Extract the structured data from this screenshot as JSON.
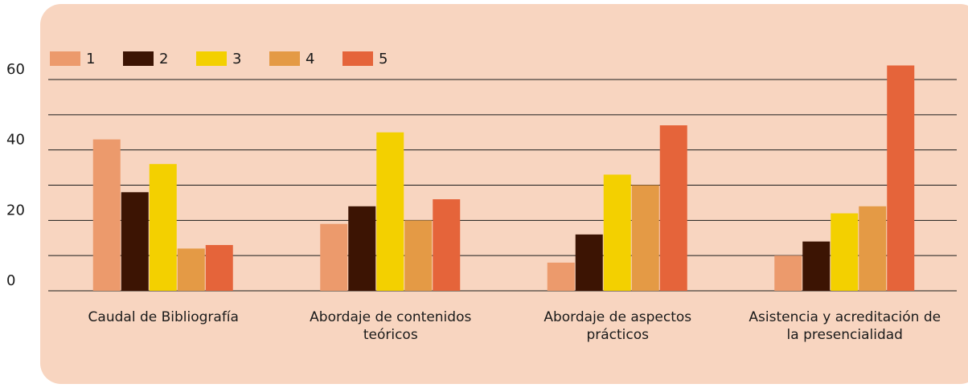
{
  "chart_data": {
    "type": "bar",
    "categories": [
      "Caudal de Bibliografía",
      "Abordaje de contenidos teóricos",
      "Abordaje de aspectos prácticos",
      "Asistencia y acreditación de la presencialidad"
    ],
    "series": [
      {
        "name": "1",
        "color": "#ec9a6c",
        "values": [
          43,
          19,
          8,
          10
        ]
      },
      {
        "name": "2",
        "color": "#3c1403",
        "values": [
          28,
          24,
          16,
          14
        ]
      },
      {
        "name": "3",
        "color": "#f3d000",
        "values": [
          36,
          45,
          33,
          22
        ]
      },
      {
        "name": "4",
        "color": "#e49a45",
        "values": [
          12,
          20,
          30,
          24
        ]
      },
      {
        "name": "5",
        "color": "#e5643a",
        "values": [
          13,
          26,
          47,
          64
        ]
      }
    ],
    "ylim": [
      0,
      66
    ],
    "yticks": [
      0,
      20,
      40,
      60
    ],
    "minor_yticks": [
      10,
      30,
      50
    ],
    "grid": true,
    "legend": "top-left"
  }
}
